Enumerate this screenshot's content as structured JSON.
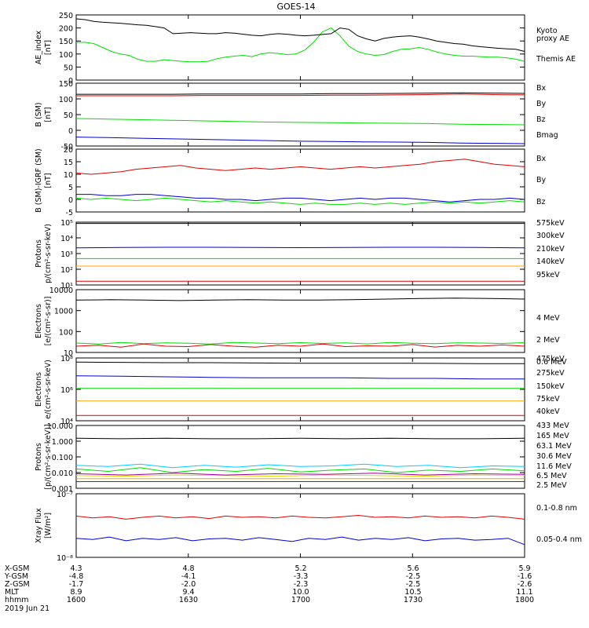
{
  "figure_title": "GOES-14",
  "colors": {
    "black": "#000000",
    "red": "#dd0000",
    "green": "#00dd00",
    "blue": "#0000cc",
    "orange": "#ffa500",
    "cyan": "#00ccff",
    "yellow": "#dddd00",
    "purple": "#a000a0"
  },
  "chart_data": [
    {
      "type": "line",
      "ylabel": "AE_index\n[nT]",
      "ylim": [
        0,
        250
      ],
      "log": false,
      "yticks": [
        "250",
        "200",
        "150",
        "100",
        "50",
        "0"
      ],
      "series": [
        {
          "name": "Kyoto\nproxy AE",
          "color": "green",
          "values": [
            145,
            145,
            140,
            125,
            110,
            100,
            95,
            80,
            72,
            72,
            78,
            75,
            72,
            70,
            70,
            72,
            82,
            88,
            92,
            95,
            90,
            100,
            105,
            102,
            98,
            100,
            115,
            145,
            185,
            200,
            170,
            130,
            110,
            100,
            95,
            98,
            110,
            118,
            120,
            125,
            118,
            108,
            100,
            95,
            92,
            92,
            90,
            88,
            88,
            85,
            80,
            72
          ]
        },
        {
          "name": "Themis AE",
          "color": "black",
          "values": [
            235,
            232,
            225,
            222,
            220,
            218,
            215,
            212,
            210,
            205,
            200,
            178,
            180,
            182,
            180,
            178,
            178,
            182,
            180,
            176,
            172,
            170,
            175,
            178,
            176,
            172,
            170,
            172,
            175,
            178,
            200,
            195,
            170,
            158,
            150,
            160,
            165,
            168,
            170,
            165,
            158,
            150,
            145,
            140,
            138,
            132,
            128,
            125,
            122,
            120,
            118,
            110
          ]
        }
      ]
    },
    {
      "type": "line",
      "ylabel": "B (SM)\n[nT]",
      "ylim": [
        -60,
        150
      ],
      "log": false,
      "yticks": [
        "150",
        "100",
        "50",
        "0",
        "-50"
      ],
      "series": [
        {
          "name": "Bx",
          "color": "blue",
          "values": [
            -30,
            -32,
            -34,
            -36,
            -38,
            -40,
            -42,
            -44,
            -45,
            -46,
            -47,
            -48,
            -50,
            -51,
            -52
          ]
        },
        {
          "name": "By",
          "color": "green",
          "values": [
            32,
            30,
            28,
            26,
            24,
            22,
            20,
            19,
            18,
            17,
            16,
            15,
            13,
            12,
            11
          ]
        },
        {
          "name": "Bz",
          "color": "red",
          "values": [
            108,
            108,
            108,
            108,
            109,
            109,
            109,
            109,
            110,
            110,
            111,
            112,
            114,
            112,
            111
          ]
        },
        {
          "name": "Bmag",
          "color": "black",
          "values": [
            113,
            113,
            113,
            113,
            114,
            114,
            114,
            114,
            115,
            115,
            116,
            117,
            118,
            117,
            116
          ]
        }
      ]
    },
    {
      "type": "line",
      "ylabel": "B (SM)-IGRF (SM)\n[nT]",
      "ylim": [
        -5,
        20
      ],
      "log": false,
      "yticks": [
        "20",
        "15",
        "10",
        "5",
        "0",
        "-5"
      ],
      "series": [
        {
          "name": "Bx",
          "color": "blue",
          "values": [
            2,
            2,
            1.5,
            1.5,
            2,
            2,
            1.5,
            1,
            0.5,
            0.5,
            0,
            0,
            -0.5,
            0,
            0.5,
            0.5,
            0,
            -0.5,
            0,
            0.5,
            0,
            0.5,
            0.5,
            0,
            -0.5,
            -1,
            -0.5,
            0,
            0,
            0.5,
            0
          ]
        },
        {
          "name": "By",
          "color": "green",
          "values": [
            0.5,
            0,
            0.5,
            0,
            -0.5,
            0,
            0.5,
            0,
            -0.5,
            -1,
            -0.5,
            -1,
            -1.5,
            -1,
            -1.5,
            -2,
            -1.5,
            -2,
            -2,
            -1.5,
            -2,
            -1.5,
            -2,
            -1.5,
            -1,
            -1.5,
            -1,
            -1.5,
            -1,
            -0.5,
            -1
          ]
        },
        {
          "name": "Bz",
          "color": "red",
          "values": [
            10.5,
            10,
            10.5,
            11,
            12,
            12.5,
            13,
            13.5,
            12.5,
            12,
            11.5,
            12,
            12.5,
            12,
            12.5,
            13,
            12.5,
            12,
            12.5,
            13,
            12.5,
            13,
            13.5,
            14,
            15,
            15.5,
            16,
            15,
            14,
            13.5,
            13
          ]
        }
      ]
    },
    {
      "type": "line",
      "ylabel": "Protons\np/(cm²-s-sr-keV)",
      "ylim": [
        1,
        6
      ],
      "log": true,
      "yticks": [
        "10⁵",
        "10⁴",
        "10³",
        "10²",
        "10¹"
      ],
      "series": [
        {
          "name": "575keV",
          "color": "red",
          "values": [
            1.3,
            1.3,
            1.3,
            1.3,
            1.3,
            1.3,
            1.3,
            1.3,
            1.3,
            1.3,
            1.3
          ]
        },
        {
          "name": "300keV",
          "color": "orange",
          "values": [
            2.5,
            2.5,
            2.5,
            2.5,
            2.5,
            2.5,
            2.5,
            2.5,
            2.5,
            2.5,
            2.5
          ]
        },
        {
          "name": "210keV",
          "color": "green",
          "values": [
            3.1,
            3.1,
            3.1,
            3.1,
            3.1,
            3.1,
            3.1,
            3.1,
            3.1,
            3.1,
            3.1
          ]
        },
        {
          "name": "140keV",
          "color": "blue",
          "values": [
            3.95,
            3.98,
            4.0,
            4.0,
            3.98,
            3.97,
            3.98,
            4.0,
            4.0,
            3.98,
            3.95
          ]
        },
        {
          "name": "95keV",
          "color": "black",
          "values": [
            5.9,
            5.9,
            5.9,
            5.9,
            5.9,
            5.9,
            5.9,
            5.9,
            5.9,
            5.9,
            5.9
          ]
        }
      ]
    },
    {
      "type": "line",
      "ylabel": "Electrons\n[e/(cm²-s-sr)]",
      "ylim": [
        1,
        4
      ],
      "log": true,
      "yticks": [
        "10000",
        "1000",
        "100",
        "10"
      ],
      "series": [
        {
          "name": "4 MeV",
          "color": "red",
          "values": [
            1.3,
            1.35,
            1.25,
            1.4,
            1.3,
            1.28,
            1.38,
            1.3,
            1.25,
            1.35,
            1.3,
            1.4,
            1.28,
            1.32,
            1.3,
            1.38,
            1.26,
            1.34,
            1.3,
            1.36,
            1.3
          ]
        },
        {
          "name": "2 MeV",
          "color": "green",
          "values": [
            1.45,
            1.4,
            1.48,
            1.42,
            1.46,
            1.44,
            1.4,
            1.48,
            1.45,
            1.42,
            1.47,
            1.43,
            1.46,
            1.41,
            1.48,
            1.44,
            1.42,
            1.46,
            1.45,
            1.43,
            1.47
          ]
        },
        {
          "name": "0.6 MeV",
          "color": "black",
          "values": [
            3.5,
            3.52,
            3.5,
            3.48,
            3.5,
            3.52,
            3.5,
            3.5,
            3.52,
            3.55,
            3.58,
            3.6,
            3.58,
            3.55
          ]
        }
      ]
    },
    {
      "type": "line",
      "ylabel": "Electrons\ne/(cm²-s-sr-keV)",
      "ylim": [
        3,
        9
      ],
      "log": true,
      "yticks": [
        "10⁸",
        "10⁶",
        "10⁴"
      ],
      "series": [
        {
          "name": "475keV",
          "color": "red",
          "values": [
            3.5,
            3.5,
            3.5,
            3.5,
            3.5,
            3.5,
            3.5,
            3.5,
            3.5,
            3.5,
            3.5
          ]
        },
        {
          "name": "275keV",
          "color": "orange",
          "values": [
            4.9,
            4.9,
            4.9,
            4.9,
            4.9,
            4.9,
            4.9,
            4.9,
            4.9,
            4.9,
            4.9
          ]
        },
        {
          "name": "150keV",
          "color": "green",
          "values": [
            6.1,
            6.1,
            6.1,
            6.1,
            6.1,
            6.1,
            6.1,
            6.1,
            6.1,
            6.1,
            6.1
          ]
        },
        {
          "name": "75keV",
          "color": "blue",
          "values": [
            7.3,
            7.25,
            7.2,
            7.15,
            7.1,
            7.1,
            7.1,
            7.05,
            7.05,
            7.0,
            7.0
          ]
        },
        {
          "name": "40keV",
          "color": "black",
          "values": [
            8.6,
            8.58,
            8.55,
            8.55,
            8.52,
            8.5,
            8.5,
            8.5,
            8.48,
            8.45,
            8.45
          ]
        }
      ]
    },
    {
      "type": "line",
      "ylabel": "Protons\n[p/(cm²-s-sr-keV)]",
      "ylim": [
        -3.1,
        2.1
      ],
      "log": true,
      "yticks": [
        "10.000",
        "1.000",
        "0.100",
        "0.010",
        "0.001"
      ],
      "series": [
        {
          "name": "433 MeV",
          "color": "red",
          "values": [
            -2.55,
            -2.55,
            -2.55,
            -2.55,
            -2.55,
            -2.55,
            -2.55,
            -2.55
          ]
        },
        {
          "name": "165 MeV",
          "color": "orange",
          "values": [
            -2.3,
            -2.3,
            -2.3,
            -2.3,
            -2.3,
            -2.3,
            -2.3,
            -2.3
          ]
        },
        {
          "name": "63.1 MeV",
          "color": "yellow",
          "values": [
            -2.05,
            -2.1,
            -2.0,
            -2.05,
            -2.1,
            -2.0,
            -2.05,
            -2.1,
            -2.0,
            -2.05
          ]
        },
        {
          "name": "30.6 MeV",
          "color": "green",
          "values": [
            -1.5,
            -1.7,
            -1.4,
            -1.8,
            -1.55,
            -1.7,
            -1.45,
            -1.75,
            -1.6,
            -1.5,
            -1.8,
            -1.6,
            -1.7,
            -1.5,
            -1.65
          ]
        },
        {
          "name": "11.6 MeV",
          "color": "cyan",
          "values": [
            -1.2,
            -1.3,
            -1.1,
            -1.4,
            -1.2,
            -1.35,
            -1.15,
            -1.3,
            -1.25,
            -1.1,
            -1.3,
            -1.2,
            -1.4,
            -1.25,
            -1.3
          ]
        },
        {
          "name": "6.5 MeV",
          "color": "purple",
          "values": [
            -1.9,
            -2.0,
            -1.85,
            -2.0,
            -1.9,
            -1.95,
            -1.85,
            -2.0,
            -1.9,
            -1.95
          ]
        },
        {
          "name": "2.5 MeV",
          "color": "black",
          "values": [
            1.05,
            1.0,
            1.05,
            1.0,
            1.0,
            1.05,
            1.0,
            1.05,
            1.0,
            1.0,
            1.05
          ]
        }
      ]
    },
    {
      "type": "line",
      "ylabel": "Xray Flux\n[W/m²]",
      "ylim": [
        -8,
        -7
      ],
      "log": true,
      "yticks": [
        "10⁻⁷",
        "10⁻⁸"
      ],
      "series": [
        {
          "name": "0.1-0.8 nm",
          "color": "red",
          "values": [
            -7.35,
            -7.38,
            -7.36,
            -7.4,
            -7.37,
            -7.35,
            -7.38,
            -7.36,
            -7.39,
            -7.35,
            -7.37,
            -7.36,
            -7.38,
            -7.35,
            -7.37,
            -7.38,
            -7.36,
            -7.34,
            -7.37,
            -7.36,
            -7.38,
            -7.35,
            -7.37,
            -7.36,
            -7.38,
            -7.35,
            -7.37,
            -7.4
          ]
        },
        {
          "name": "0.05-0.4 nm",
          "color": "blue",
          "values": [
            -7.7,
            -7.72,
            -7.68,
            -7.74,
            -7.7,
            -7.72,
            -7.69,
            -7.74,
            -7.71,
            -7.7,
            -7.73,
            -7.69,
            -7.72,
            -7.75,
            -7.7,
            -7.72,
            -7.68,
            -7.73,
            -7.7,
            -7.72,
            -7.69,
            -7.74,
            -7.71,
            -7.7,
            -7.73,
            -7.72,
            -7.7,
            -7.8
          ]
        }
      ]
    }
  ],
  "x_axis": {
    "rows": [
      {
        "label": "X-GSM",
        "values": [
          "4.3",
          "4.8",
          "5.2",
          "5.6",
          "5.9"
        ]
      },
      {
        "label": "Y-GSM",
        "values": [
          "-4.8",
          "-4.1",
          "-3.3",
          "-2.5",
          "-1.6"
        ]
      },
      {
        "label": "Z-GSM",
        "values": [
          "-1.7",
          "-2.0",
          "-2.3",
          "-2.5",
          "-2.6"
        ]
      },
      {
        "label": "MLT",
        "values": [
          "8.9",
          "9.4",
          "10.0",
          "10.5",
          "11.1"
        ]
      },
      {
        "label": "hhmm",
        "values": [
          "1600",
          "1630",
          "1700",
          "1730",
          "1800"
        ]
      }
    ],
    "date": "2019 Jun 21"
  }
}
